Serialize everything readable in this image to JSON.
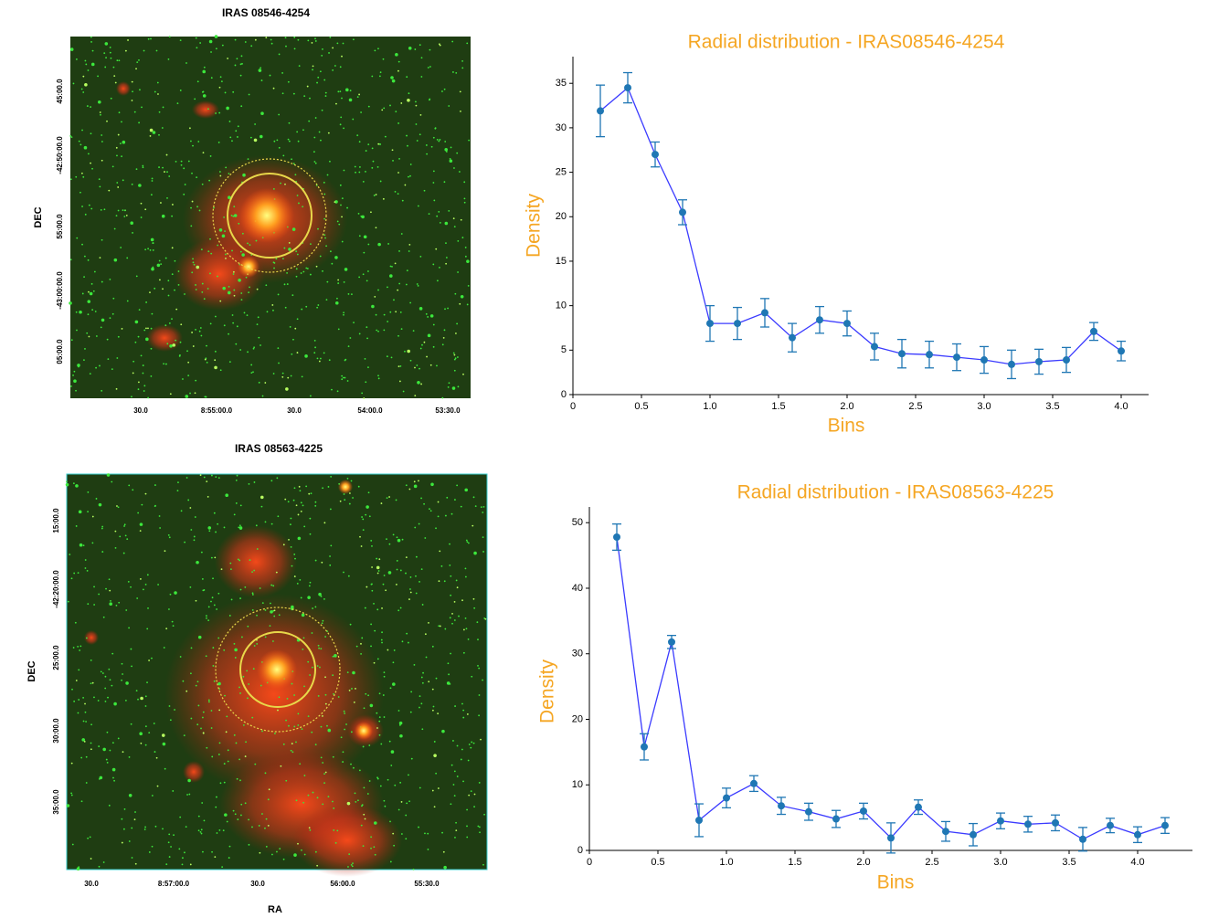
{
  "chart_data": [
    {
      "type": "image",
      "title": "IRAS 08546-4254",
      "ylabel": "DEC",
      "x_tick_labels": [
        "30.0",
        "8:55:00.0",
        "30.0",
        "54:00.0",
        "53:30.0"
      ],
      "y_tick_labels": [
        "45:00.0",
        "-42:50:00.0",
        "55:00.0",
        "-43:00:00.0",
        "05:00.0"
      ]
    },
    {
      "type": "line",
      "title": "Radial distribution - IRAS08546-4254",
      "xlabel": "Bins",
      "ylabel": "Density",
      "line_color": "#3b3bff",
      "marker_color": "#1f77b4",
      "x": [
        0.2,
        0.4,
        0.6,
        0.8,
        1.0,
        1.2,
        1.4,
        1.6,
        1.8,
        2.0,
        2.2,
        2.4,
        2.6,
        2.8,
        3.0,
        3.2,
        3.4,
        3.6,
        3.8,
        4.0
      ],
      "values": [
        31.9,
        34.5,
        27,
        20.5,
        8,
        8,
        9.2,
        6.4,
        8.4,
        8,
        5.4,
        4.6,
        4.5,
        4.2,
        3.9,
        3.4,
        3.7,
        3.9,
        7.1,
        4.9
      ],
      "errors": [
        2.9,
        1.7,
        1.4,
        1.4,
        2,
        1.8,
        1.6,
        1.6,
        1.5,
        1.4,
        1.5,
        1.6,
        1.5,
        1.5,
        1.5,
        1.6,
        1.4,
        1.4,
        1.0,
        1.1
      ],
      "xlim": [
        0,
        4.2
      ],
      "ylim": [
        0,
        38
      ],
      "xticks": [
        0,
        0.5,
        {
          "value": 1,
          "label": "1.0"
        },
        1.5,
        {
          "value": 2,
          "label": "2.0"
        },
        2.5,
        {
          "value": 3,
          "label": "3.0"
        },
        3.5,
        {
          "value": 4,
          "label": "4.0"
        }
      ],
      "yticks": [
        0,
        5,
        10,
        15,
        20,
        25,
        30,
        35
      ]
    },
    {
      "type": "image",
      "title": "IRAS 08563-4225",
      "xlabel": "RA",
      "ylabel": "DEC",
      "x_tick_labels": [
        "30.0",
        "8:57:00.0",
        "30.0",
        "56:00.0",
        "55:30.0"
      ],
      "y_tick_labels": [
        "15:00.0",
        "-42:20:00.0",
        "25:00.0",
        "30:00.0",
        "35:00.0"
      ]
    },
    {
      "type": "line",
      "title": "Radial distribution - IRAS08563-4225",
      "xlabel": "Bins",
      "ylabel": "Density",
      "line_color": "#3b3bff",
      "marker_color": "#1f77b4",
      "x": [
        0.2,
        0.4,
        0.6,
        0.8,
        1.0,
        1.2,
        1.4,
        1.6,
        1.8,
        2.0,
        2.2,
        2.4,
        2.6,
        2.8,
        3.0,
        3.2,
        3.4,
        3.6,
        3.8,
        4.0,
        4.2
      ],
      "values": [
        47.8,
        15.8,
        31.8,
        4.6,
        8,
        10.2,
        6.8,
        5.9,
        4.8,
        6,
        1.9,
        6.6,
        2.9,
        2.4,
        4.5,
        4,
        4.2,
        1.7,
        3.8,
        2.4,
        3.8
      ],
      "errors": [
        2,
        2,
        1,
        2.5,
        1.5,
        1.2,
        1.3,
        1.3,
        1.3,
        1.2,
        2.3,
        1.1,
        1.5,
        1.7,
        1.2,
        1.2,
        1.2,
        1.8,
        1.1,
        1.2,
        1.2
      ],
      "xlim": [
        0,
        4.4
      ],
      "ylim": [
        0,
        52.4
      ],
      "xticks": [
        0,
        0.5,
        {
          "value": 1,
          "label": "1.0"
        },
        1.5,
        {
          "value": 2,
          "label": "2.0"
        },
        2.5,
        {
          "value": 3,
          "label": "3.0"
        },
        3.5,
        {
          "value": 4,
          "label": "4.0"
        }
      ],
      "yticks": [
        0,
        10,
        20,
        30,
        40,
        50
      ]
    }
  ]
}
